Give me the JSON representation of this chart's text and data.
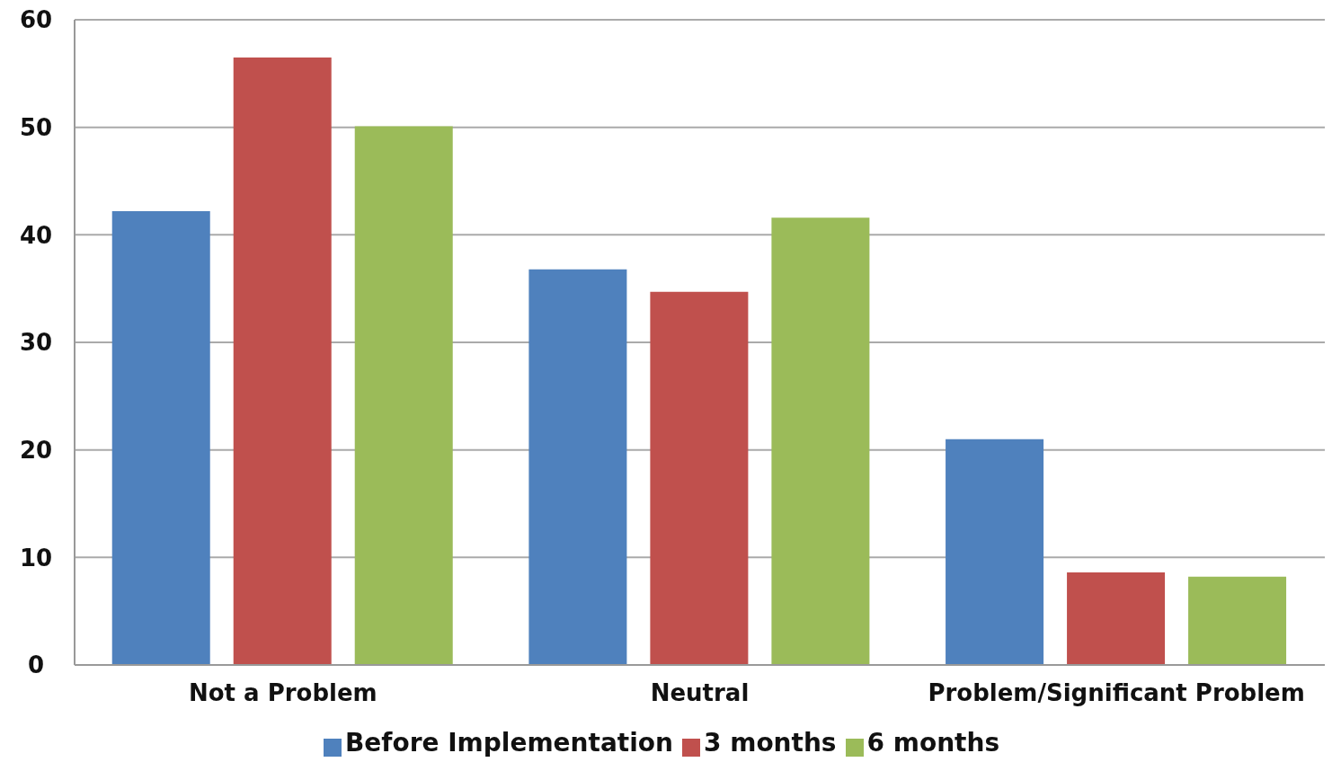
{
  "chart_data": {
    "type": "bar",
    "categories": [
      "Not a Problem",
      "Neutral",
      "Problem/Significant Problem"
    ],
    "series": [
      {
        "name": "Before Implementation",
        "color": "#4f81bd",
        "values": [
          42.2,
          36.8,
          21.0
        ]
      },
      {
        "name": "3 months",
        "color": "#c0504d",
        "values": [
          56.5,
          34.7,
          8.6
        ]
      },
      {
        "name": "6 months",
        "color": "#9bbb59",
        "values": [
          50.1,
          41.6,
          8.2
        ]
      }
    ],
    "ylim": [
      0,
      60
    ],
    "yticks": [
      0,
      10,
      20,
      30,
      40,
      50,
      60
    ],
    "grid": "y",
    "legend": "bottom"
  }
}
